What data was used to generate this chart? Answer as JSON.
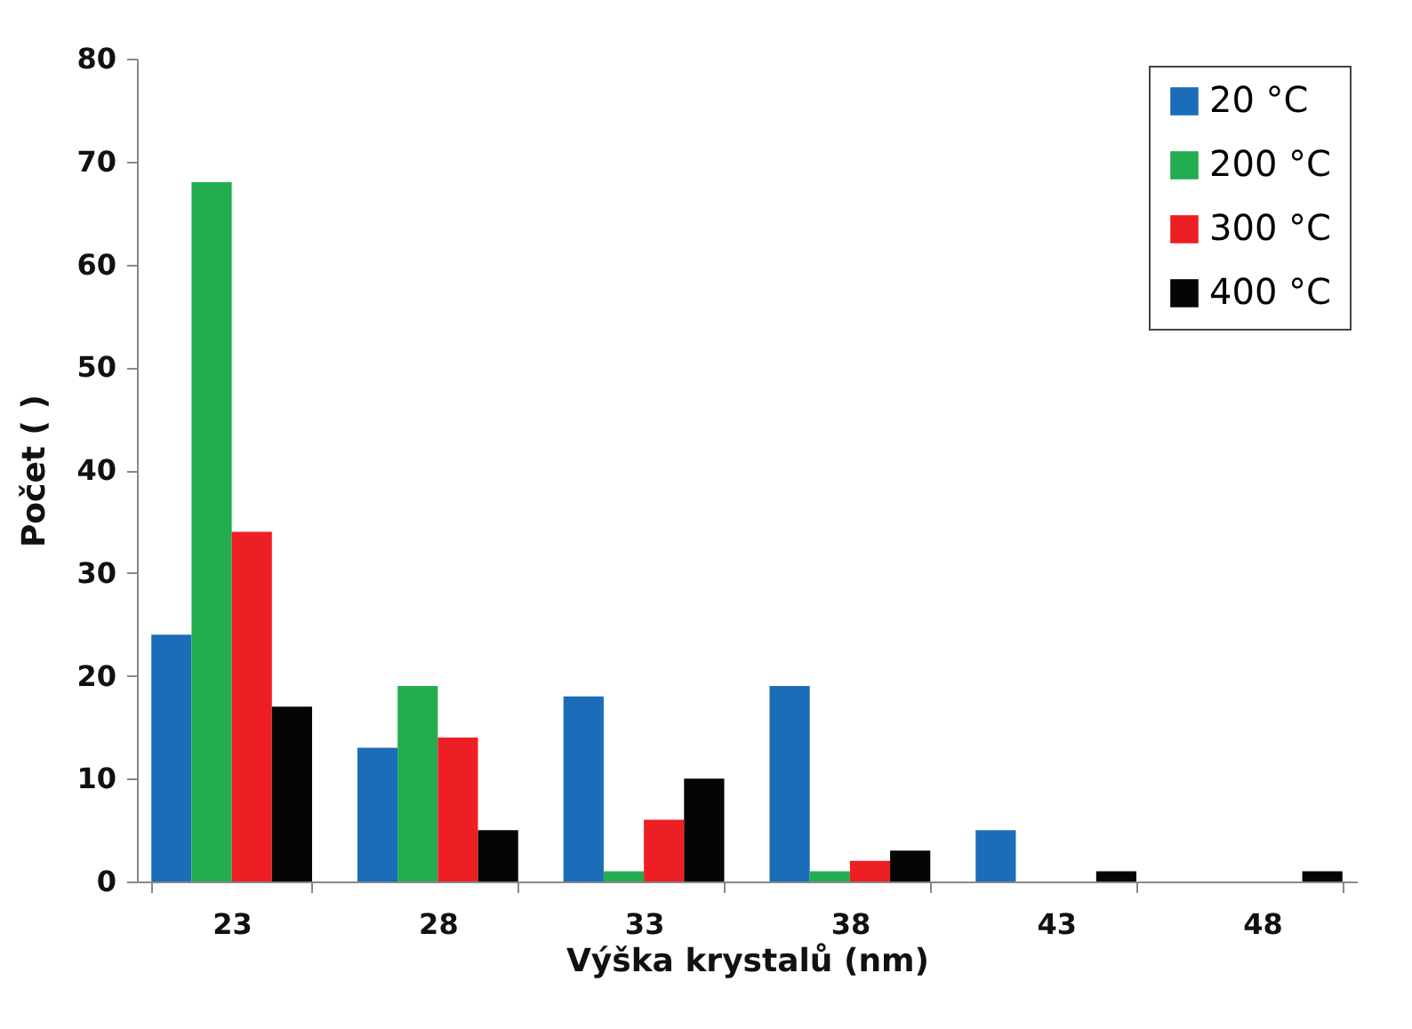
{
  "chart_data": {
    "type": "bar",
    "xlabel": "Výška krystalů (nm)",
    "ylabel": "Počet ( )",
    "categories": [
      "23",
      "28",
      "33",
      "38",
      "43",
      "48"
    ],
    "series": [
      {
        "name": "20 °C",
        "color": "#1b6db8",
        "values": [
          24,
          13,
          18,
          19,
          5,
          0
        ]
      },
      {
        "name": "200 °C",
        "color": "#22ad50",
        "values": [
          68,
          19,
          1,
          1,
          0,
          0
        ]
      },
      {
        "name": "300 °C",
        "color": "#ee1f24",
        "values": [
          34,
          14,
          6,
          2,
          0,
          0
        ]
      },
      {
        "name": "400 °C",
        "color": "#050505",
        "values": [
          17,
          5,
          10,
          3,
          1,
          1
        ]
      }
    ],
    "ylim": [
      0,
      80
    ],
    "yticks": [
      0,
      10,
      20,
      30,
      40,
      50,
      60,
      70,
      80
    ],
    "grid": false,
    "legend": "top right"
  }
}
